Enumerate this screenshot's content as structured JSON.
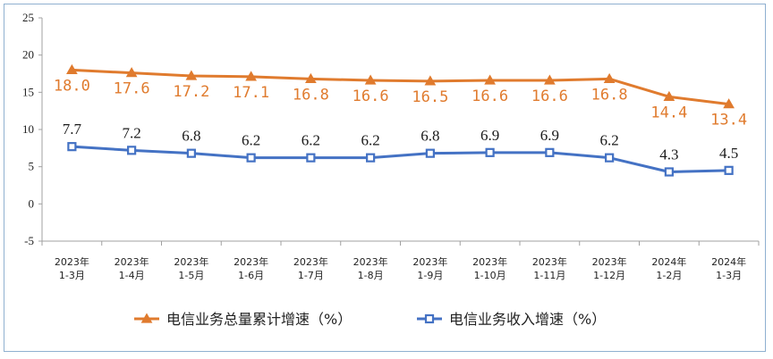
{
  "chart_data": {
    "type": "line",
    "categories": [
      [
        "2023年",
        "1-3月"
      ],
      [
        "2023年",
        "1-4月"
      ],
      [
        "2023年",
        "1-5月"
      ],
      [
        "2023年",
        "1-6月"
      ],
      [
        "2023年",
        "1-7月"
      ],
      [
        "2023年",
        "1-8月"
      ],
      [
        "2023年",
        "1-9月"
      ],
      [
        "2023年",
        "1-10月"
      ],
      [
        "2023年",
        "1-11月"
      ],
      [
        "2023年",
        "1-12月"
      ],
      [
        "2024年",
        "1-2月"
      ],
      [
        "2024年",
        "1-3月"
      ]
    ],
    "series": [
      {
        "name": "电信业务总量累计增速（%）",
        "values": [
          18.0,
          17.6,
          17.2,
          17.1,
          16.8,
          16.6,
          16.5,
          16.6,
          16.6,
          16.8,
          14.4,
          13.4
        ],
        "labels": [
          "18.0",
          "17.6",
          "17.2",
          "17.1",
          "16.8",
          "16.6",
          "16.5",
          "16.6",
          "16.6",
          "16.8",
          "14.4",
          "13.4"
        ],
        "color": "#e07b2e",
        "marker": "triangle"
      },
      {
        "name": "电信业务收入增速（%）",
        "values": [
          7.7,
          7.2,
          6.8,
          6.2,
          6.2,
          6.2,
          6.8,
          6.9,
          6.9,
          6.2,
          4.3,
          4.5
        ],
        "labels": [
          "7.7",
          "7.2",
          "6.8",
          "6.2",
          "6.2",
          "6.2",
          "6.8",
          "6.9",
          "6.9",
          "6.2",
          "4.3",
          "4.5"
        ],
        "color": "#4472c4",
        "marker": "square"
      }
    ],
    "ylim": [
      -5,
      25
    ],
    "yticks": [
      "25",
      "20",
      "15",
      "10",
      "5",
      "0",
      "-5"
    ],
    "ytick_values": [
      25,
      20,
      15,
      10,
      5,
      0,
      -5
    ],
    "grid": false,
    "legend": "bottom",
    "title": "",
    "xlabel": "",
    "ylabel": ""
  }
}
